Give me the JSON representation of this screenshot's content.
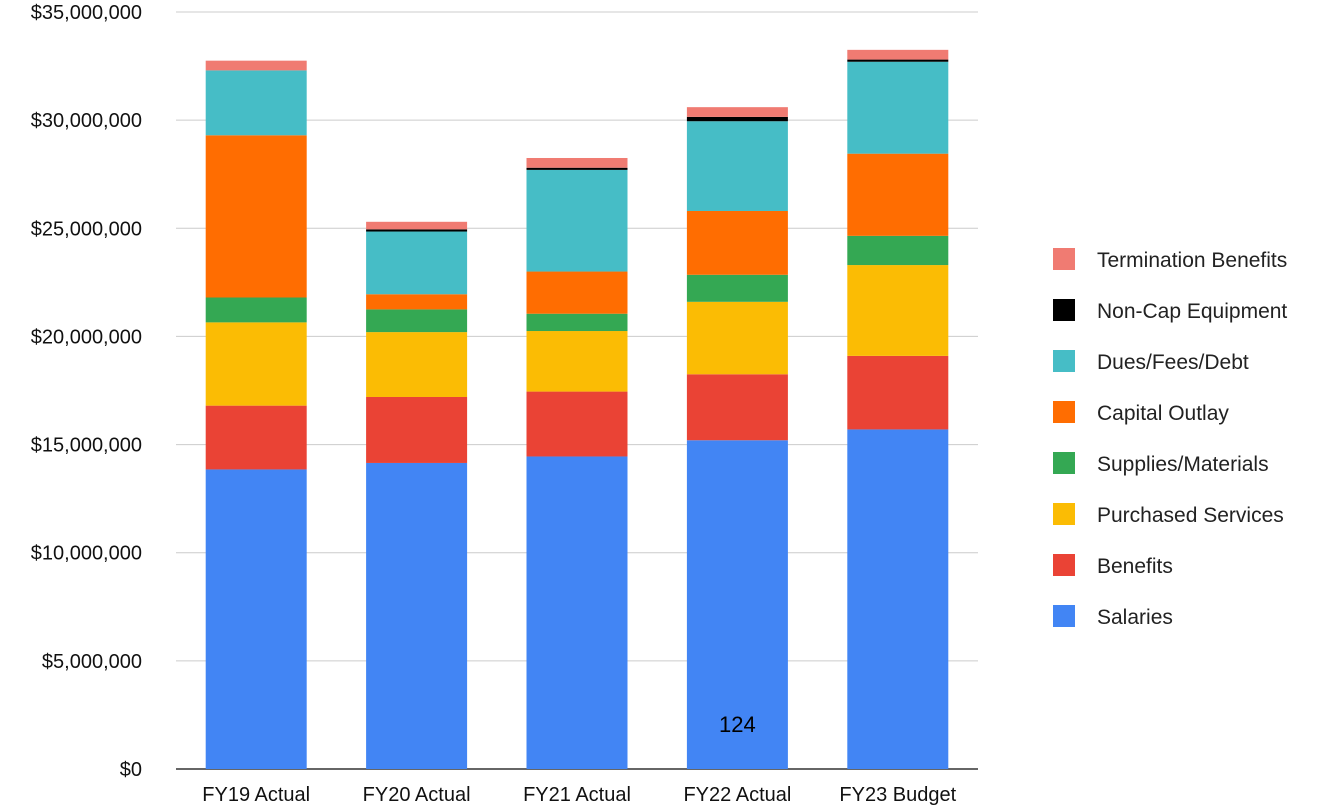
{
  "chart_data": {
    "type": "bar",
    "stacked": true,
    "title": "",
    "xlabel": "",
    "ylabel": "",
    "categories": [
      "FY19 Actual",
      "FY20 Actual",
      "FY21 Actual",
      "FY22 Actual",
      "FY23 Budget"
    ],
    "ylim": [
      0,
      35000000
    ],
    "y_ticks": [
      0,
      5000000,
      10000000,
      15000000,
      20000000,
      25000000,
      30000000,
      35000000
    ],
    "y_tick_labels": [
      "$0",
      "$5,000,000",
      "$10,000,000",
      "$15,000,000",
      "$20,000,000",
      "$25,000,000",
      "$30,000,000",
      "$35,000,000"
    ],
    "grid": true,
    "legend_position": "right",
    "series": [
      {
        "name": "Salaries",
        "color": "#4285f4",
        "values": [
          13850000,
          14150000,
          14450000,
          15200000,
          15700000
        ]
      },
      {
        "name": "Benefits",
        "color": "#ea4335",
        "values": [
          2950000,
          3050000,
          3000000,
          3050000,
          3400000
        ]
      },
      {
        "name": "Purchased Services",
        "color": "#fbbc04",
        "values": [
          3850000,
          3000000,
          2800000,
          3350000,
          4200000
        ]
      },
      {
        "name": "Supplies/Materials",
        "color": "#34a853",
        "values": [
          1150000,
          1050000,
          800000,
          1250000,
          1350000
        ]
      },
      {
        "name": "Capital Outlay",
        "color": "#ff6d01",
        "values": [
          7500000,
          700000,
          1950000,
          2950000,
          3800000
        ]
      },
      {
        "name": "Dues/Fees/Debt",
        "color": "#46bdc6",
        "values": [
          3000000,
          2900000,
          4700000,
          4150000,
          4250000
        ]
      },
      {
        "name": "Non-Cap Equipment",
        "color": "#000000",
        "values": [
          0,
          100000,
          100000,
          200000,
          100000
        ]
      },
      {
        "name": "Termination Benefits",
        "color": "#f07b72",
        "values": [
          450000,
          350000,
          450000,
          450000,
          450000
        ]
      }
    ],
    "legend_order": [
      "Termination Benefits",
      "Non-Cap Equipment",
      "Dues/Fees/Debt",
      "Capital Outlay",
      "Supplies/Materials",
      "Purchased Services",
      "Benefits",
      "Salaries"
    ],
    "annotations": [
      {
        "text": "124",
        "category": "FY22 Actual",
        "y": 1700000
      }
    ]
  }
}
